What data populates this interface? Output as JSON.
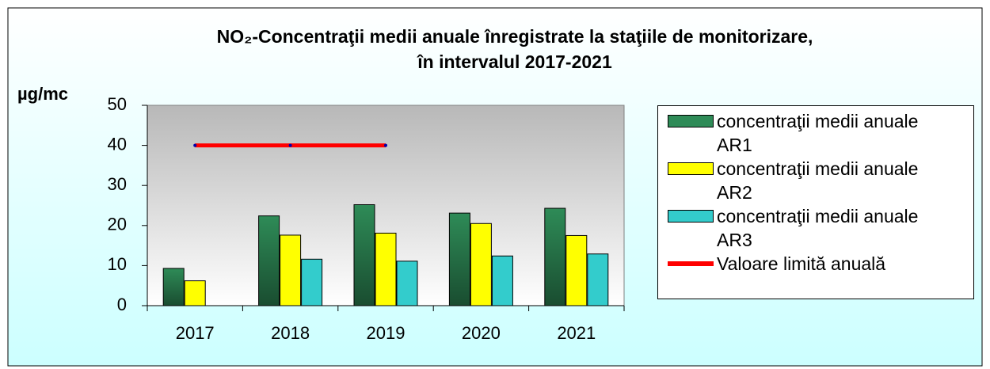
{
  "chart_data": {
    "type": "bar",
    "title": [
      "NO₂-Concentraţii medii anuale înregistrate la staţiile de monitorizare,",
      "în intervalul 2017-2021"
    ],
    "y_label": "µg/mc",
    "categories": [
      "2017",
      "2018",
      "2019",
      "2020",
      "2021"
    ],
    "series": [
      {
        "name": "concentraţii medii anuale AR1",
        "color": "#2e8b57",
        "values": [
          9.3,
          22.4,
          25.2,
          23.1,
          24.3
        ]
      },
      {
        "name": "concentraţii medii anuale AR2",
        "color": "#ffff00",
        "values": [
          6.2,
          17.6,
          18.1,
          20.5,
          17.5
        ]
      },
      {
        "name": "concentraţii medii anuale AR3",
        "color": "#33cccc",
        "values": [
          null,
          11.6,
          11.1,
          12.4,
          12.9
        ]
      },
      {
        "name": "Valoare limită anuală",
        "type": "line",
        "color": "#ff0000",
        "values": [
          40,
          40,
          40,
          null,
          null
        ]
      }
    ],
    "ylim": [
      0,
      50
    ],
    "yticks": [
      0,
      10,
      20,
      30,
      40,
      50
    ],
    "legend": "right"
  }
}
